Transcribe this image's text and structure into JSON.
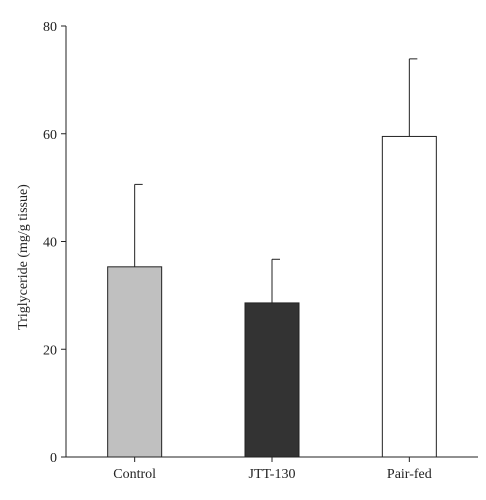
{
  "chart_data": {
    "type": "bar",
    "title": "",
    "xlabel": "",
    "ylabel": "Triglyceride (mg/g tissue)",
    "ylim": [
      0,
      80
    ],
    "yticks": [
      0,
      20,
      40,
      60,
      80
    ],
    "categories": [
      "Control",
      "JTT-130",
      "Pair-fed"
    ],
    "values": [
      35.3,
      28.6,
      59.5
    ],
    "error_upper": [
      15.3,
      8.1,
      14.4
    ],
    "bar_colors": [
      "#c0c0c0",
      "#333333",
      "#ffffff"
    ],
    "grid": false,
    "legend": "none"
  }
}
